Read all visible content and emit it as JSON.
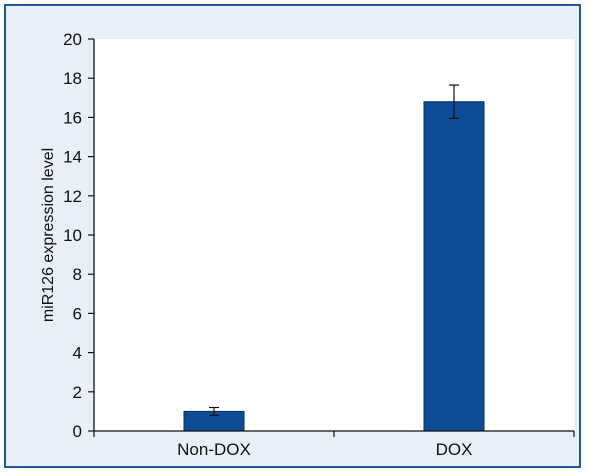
{
  "chart_data": {
    "type": "bar",
    "title": "",
    "xlabel": "",
    "ylabel": "miR126 expression level",
    "categories": [
      "Non-DOX",
      "DOX"
    ],
    "series": [
      {
        "values": [
          1.0,
          16.8
        ],
        "error": [
          0.2,
          0.85
        ]
      }
    ],
    "ylim": [
      0,
      20
    ],
    "yticks": [
      0,
      2,
      4,
      6,
      8,
      10,
      12,
      14,
      16,
      18,
      20
    ],
    "grid": false,
    "legend": "none",
    "colors": {
      "bar": "#0d4c96",
      "bar_edge": "#0a2f5c",
      "axis": "#111111",
      "frame": "#1f5c96",
      "frame_bg": "#e8f1f8",
      "plot_bg": "#ffffff"
    }
  }
}
